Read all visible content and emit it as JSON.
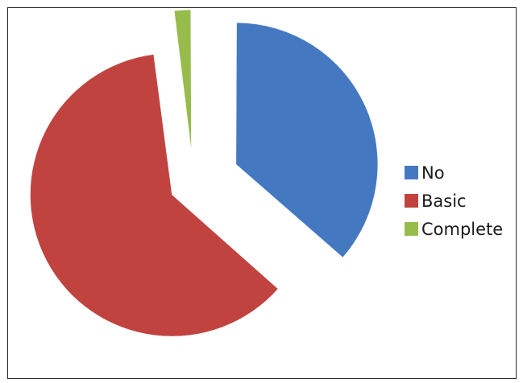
{
  "chart_data": {
    "type": "pie",
    "title": "",
    "categories": [
      "No",
      "Basic",
      "Complete"
    ],
    "values": [
      36.5,
      61.5,
      2.0
    ],
    "colors": [
      "#4479C1",
      "#C0433F",
      "#97BC4C"
    ],
    "exploded": true,
    "legend": {
      "position": "right",
      "entries": [
        "No",
        "Basic",
        "Complete"
      ]
    }
  }
}
